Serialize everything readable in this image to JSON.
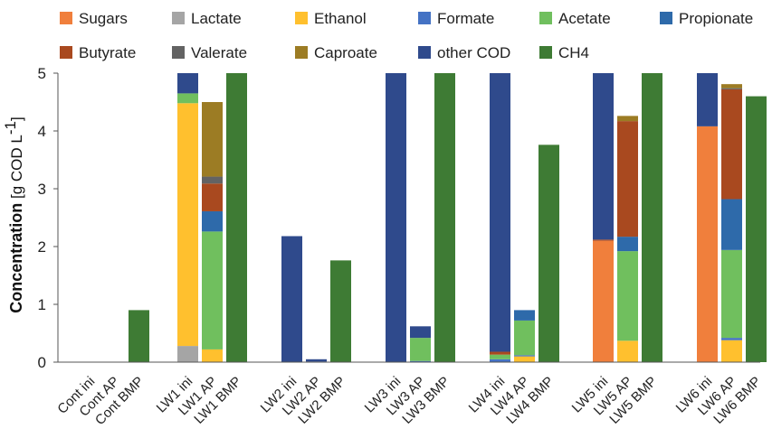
{
  "chart_data": {
    "type": "bar",
    "stacked": true,
    "ylabel": {
      "main": "Concentration",
      "unit_open": " [g COD L",
      "unit_exp": "-1",
      "unit_close": "]"
    },
    "ylim": [
      0,
      5
    ],
    "yticks": [
      "0",
      "1",
      "2",
      "3",
      "4",
      "5"
    ],
    "grid": false,
    "legend_position": "top",
    "groups": [
      {
        "name": "Cont",
        "categories": [
          "Cont ini",
          "Cont AP",
          "Cont BMP"
        ]
      },
      {
        "name": "LW1",
        "categories": [
          "LW1 ini",
          "LW1 AP",
          "LW1 BMP"
        ]
      },
      {
        "name": "LW2",
        "categories": [
          "LW2 ini",
          "LW2 AP",
          "LW2 BMP"
        ]
      },
      {
        "name": "LW3",
        "categories": [
          "LW3 ini",
          "LW3 AP",
          "LW3 BMP"
        ]
      },
      {
        "name": "LW4",
        "categories": [
          "LW4 ini",
          "LW4 AP",
          "LW4 BMP"
        ]
      },
      {
        "name": "LW5",
        "categories": [
          "LW5 ini",
          "LW5 AP",
          "LW5 BMP"
        ]
      },
      {
        "name": "LW6",
        "categories": [
          "LW6 ini",
          "LW6 AP",
          "LW6 BMP"
        ]
      }
    ],
    "categories": [
      "Cont ini",
      "Cont AP",
      "Cont BMP",
      "LW1 ini",
      "LW1 AP",
      "LW1 BMP",
      "LW2 ini",
      "LW2 AP",
      "LW2 BMP",
      "LW3 ini",
      "LW3 AP",
      "LW3 BMP",
      "LW4 ini",
      "LW4 AP",
      "LW4 BMP",
      "LW5 ini",
      "LW5 AP",
      "LW5 BMP",
      "LW6 ini",
      "LW6 AP",
      "LW6 BMP"
    ],
    "series": [
      {
        "name": "Sugars",
        "color": "#F07F3C",
        "values": [
          0,
          0,
          0,
          0,
          0,
          0,
          0,
          0,
          0,
          0,
          0,
          0,
          0,
          0,
          0,
          2.1,
          0,
          0,
          4.08,
          0,
          0
        ]
      },
      {
        "name": "Lactate",
        "color": "#A5A5A5",
        "values": [
          0,
          0,
          0,
          0.28,
          0,
          0,
          0,
          0,
          0,
          0,
          0,
          0,
          0,
          0,
          0,
          0,
          0,
          0,
          0,
          0,
          0
        ]
      },
      {
        "name": "Ethanol",
        "color": "#FFC02E",
        "values": [
          0,
          0,
          0,
          4.2,
          0.22,
          0,
          0,
          0,
          0,
          0,
          0,
          0,
          0,
          0.1,
          0,
          0,
          0.37,
          0,
          0,
          0.38,
          0
        ]
      },
      {
        "name": "Formate",
        "color": "#4472C4",
        "values": [
          0,
          0,
          0,
          0,
          0,
          0,
          0,
          0.01,
          0,
          0,
          0.02,
          0,
          0.05,
          0.02,
          0,
          0,
          0,
          0,
          0,
          0.04,
          0
        ]
      },
      {
        "name": "Acetate",
        "color": "#70BF5E",
        "values": [
          0,
          0,
          0,
          0.17,
          2.04,
          0,
          0,
          0,
          0,
          0,
          0.4,
          0,
          0.08,
          0.6,
          0,
          0,
          1.55,
          0,
          0,
          1.52,
          0
        ]
      },
      {
        "name": "Propionate",
        "color": "#2E6AAA",
        "values": [
          0,
          0,
          0,
          0,
          0.35,
          0,
          0,
          0,
          0,
          0,
          0,
          0,
          0,
          0.18,
          0,
          0,
          0.25,
          0,
          0,
          0.88,
          0
        ]
      },
      {
        "name": "Butyrate",
        "color": "#A9491F",
        "values": [
          0,
          0,
          0,
          0,
          0.48,
          0,
          0,
          0,
          0,
          0,
          0,
          0,
          0.05,
          0,
          0,
          0.02,
          2.0,
          0,
          0,
          1.9,
          0
        ]
      },
      {
        "name": "Valerate",
        "color": "#636363",
        "values": [
          0,
          0,
          0,
          0,
          0.12,
          0,
          0,
          0,
          0,
          0,
          0,
          0,
          0,
          0,
          0,
          0,
          0,
          0,
          0,
          0.02,
          0
        ]
      },
      {
        "name": "Caproate",
        "color": "#9C7C24",
        "values": [
          0,
          0,
          0,
          0,
          1.29,
          0,
          0,
          0,
          0,
          0,
          0,
          0,
          0,
          0,
          0,
          0,
          0.09,
          0,
          0,
          0.07,
          0
        ]
      },
      {
        "name": "other COD",
        "color": "#2F4A8C",
        "values": [
          0,
          0,
          0,
          0.35,
          0,
          0,
          2.18,
          0.04,
          0,
          5.0,
          0.2,
          0,
          4.82,
          0,
          0,
          2.88,
          0,
          0,
          0.92,
          0,
          0
        ]
      },
      {
        "name": "CH4",
        "color": "#3E7B34",
        "values": [
          0,
          0,
          0.9,
          0,
          0,
          5.0,
          0,
          0,
          1.76,
          0,
          0,
          5.0,
          0,
          0,
          3.76,
          0,
          0,
          5.0,
          0,
          0,
          4.6
        ]
      }
    ]
  }
}
